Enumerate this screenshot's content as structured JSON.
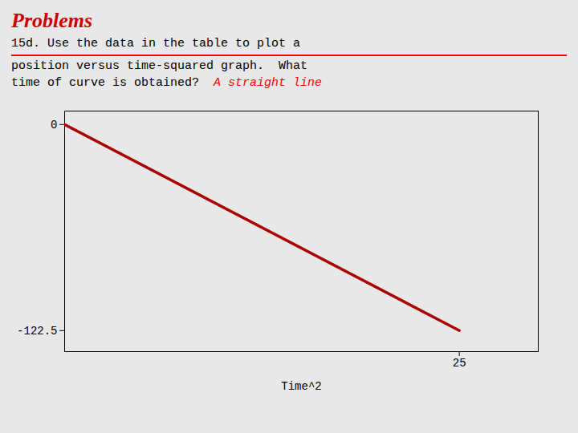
{
  "chart_data": {
    "type": "line",
    "title": "Problems",
    "subtitle": [
      "15d. Use the data in the table to plot a",
      "position versus time-squared graph.  What",
      "time of curve is obtained?"
    ],
    "annotations": [
      "A straight line"
    ],
    "x": [
      0,
      25
    ],
    "values": [
      0,
      -122.5
    ],
    "color": "#aa0000",
    "xlabel": "Time^2",
    "xlim": [
      0,
      30
    ],
    "xticks": [
      25
    ],
    "ylim": [
      -135,
      8
    ],
    "yticks": [
      0,
      -122.5
    ],
    "grid": false
  }
}
